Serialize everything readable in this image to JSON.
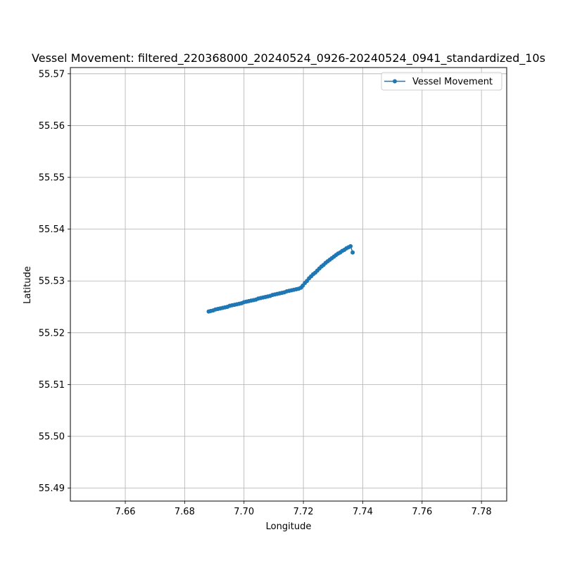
{
  "chart_data": {
    "type": "line",
    "title": "Vessel Movement: filtered_220368000_20240524_0926-20240524_0941_standardized_10s",
    "xlabel": "Longitude",
    "ylabel": "Latitude",
    "xlim": [
      7.6415,
      7.7885
    ],
    "ylim": [
      55.4875,
      55.5712
    ],
    "xticks": [
      "7.66",
      "7.68",
      "7.70",
      "7.72",
      "7.74",
      "7.76",
      "7.78"
    ],
    "yticks": [
      "55.49",
      "55.50",
      "55.51",
      "55.52",
      "55.53",
      "55.54",
      "55.55",
      "55.56",
      "55.57"
    ],
    "grid": true,
    "legend_position": "top-right",
    "series": [
      {
        "name": "Vessel Movement",
        "color": "#1f77b4",
        "marker": "circle",
        "x": [
          7.6881,
          7.6888,
          7.6896,
          7.6904,
          7.6912,
          7.692,
          7.6928,
          7.6936,
          7.6944,
          7.6952,
          7.696,
          7.6968,
          7.6976,
          7.6984,
          7.6992,
          7.7,
          7.7008,
          7.7016,
          7.7024,
          7.7032,
          7.704,
          7.7048,
          7.7056,
          7.7064,
          7.7072,
          7.708,
          7.7088,
          7.7096,
          7.7104,
          7.7112,
          7.712,
          7.7128,
          7.7136,
          7.7144,
          7.7152,
          7.716,
          7.7168,
          7.7176,
          7.7184,
          7.7192,
          7.7198,
          7.7205,
          7.7212,
          7.7219,
          7.7226,
          7.7233,
          7.724,
          7.7247,
          7.7254,
          7.7261,
          7.7268,
          7.7275,
          7.7282,
          7.7289,
          7.7296,
          7.7303,
          7.731,
          7.7317,
          7.7324,
          7.7331,
          7.7338,
          7.7345,
          7.7352,
          7.7359,
          7.7366
        ],
        "y": [
          55.5241,
          55.5242,
          55.5243,
          55.5245,
          55.5246,
          55.5247,
          55.5248,
          55.5249,
          55.525,
          55.5252,
          55.5253,
          55.5254,
          55.5255,
          55.5256,
          55.5257,
          55.5259,
          55.526,
          55.5261,
          55.5262,
          55.5263,
          55.5264,
          55.5266,
          55.5267,
          55.5268,
          55.5269,
          55.527,
          55.5271,
          55.5273,
          55.5274,
          55.5275,
          55.5276,
          55.5277,
          55.5278,
          55.528,
          55.5281,
          55.5282,
          55.5283,
          55.5284,
          55.5285,
          55.5287,
          55.5291,
          55.5296,
          55.53,
          55.5305,
          55.5309,
          55.5313,
          55.5316,
          55.532,
          55.5324,
          55.5328,
          55.5331,
          55.5335,
          55.5338,
          55.5341,
          55.5344,
          55.5347,
          55.535,
          55.5353,
          55.5355,
          55.5358,
          55.536,
          55.5363,
          55.5365,
          55.5367,
          55.5355
        ]
      }
    ]
  }
}
